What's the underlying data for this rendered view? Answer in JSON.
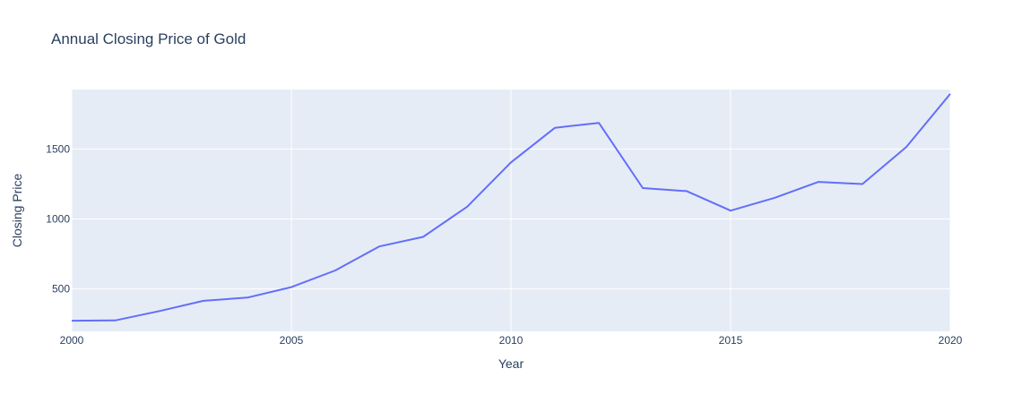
{
  "chart_data": {
    "type": "line",
    "title": "Annual Closing Price of Gold",
    "xlabel": "Year",
    "ylabel": "Closing Price",
    "xlim": [
      2000,
      2020
    ],
    "ylim": [
      197,
      1925
    ],
    "x_ticks": [
      2000,
      2005,
      2010,
      2015,
      2020
    ],
    "x_tick_labels": [
      "2000",
      "2005",
      "2010",
      "2015",
      "2020"
    ],
    "y_ticks": [
      500,
      1000,
      1500
    ],
    "y_tick_labels": [
      "500",
      "1000",
      "1500"
    ],
    "grid": true,
    "legend": false,
    "line_color": "#636efa",
    "plot_bgcolor": "#e5ecf6",
    "gridline_color": "#ffffff",
    "series": [
      {
        "x": [
          2000,
          2001,
          2002,
          2003,
          2004,
          2005,
          2006,
          2007,
          2008,
          2009,
          2010,
          2011,
          2012,
          2013,
          2014,
          2015,
          2016,
          2017,
          2018,
          2019,
          2020
        ],
        "values": [
          273,
          276,
          342,
          415,
          438,
          513,
          632,
          804,
          872,
          1087,
          1405,
          1652,
          1687,
          1221,
          1199,
          1060,
          1151,
          1265,
          1250,
          1515,
          1894
        ]
      }
    ]
  }
}
